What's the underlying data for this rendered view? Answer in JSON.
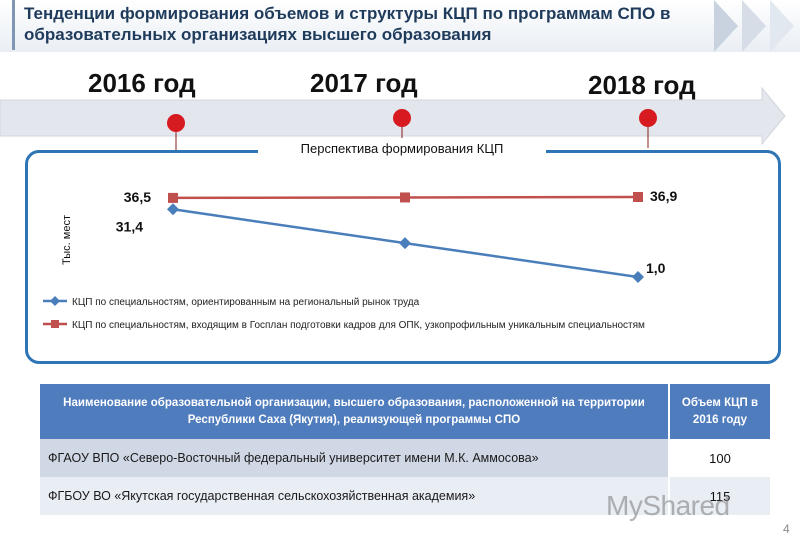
{
  "header": {
    "title": "Тенденции формирования объемов и структуры КЦП по программам СПО в образовательных организациях высшего образования"
  },
  "timeline": {
    "years": [
      "2016 год",
      "2017 год",
      "2018 год"
    ],
    "marker_color": "#d71a20",
    "arrow_color": "#e3e7ed"
  },
  "chart_data": {
    "type": "line",
    "title": "Перспектива формирования КЦП",
    "ylabel": "Тыс. мест",
    "x": [
      "2016",
      "2017",
      "2018"
    ],
    "ylim": [
      0,
      40
    ],
    "legend_position": "bottom",
    "series": [
      {
        "name": "КЦП по специальностям, ориентированным на региональный рынок труда",
        "values": [
          31.4,
          16.2,
          1.0
        ],
        "labels": [
          "31,4",
          "",
          "1,0"
        ],
        "color": "#4a7ebb",
        "marker": "diamond"
      },
      {
        "name": "КЦП по специальностям, входящим в Госплан подготовки кадров для ОПК, узкопрофильным уникальным специальностям",
        "values": [
          36.5,
          36.7,
          36.9
        ],
        "labels": [
          "36,5",
          "",
          "36,9"
        ],
        "color": "#c0504d",
        "marker": "square"
      }
    ]
  },
  "table": {
    "headers": [
      "Наименование образовательной организации, высшего образования, расположенной на территории Республики Саха (Якутия), реализующей программы СПО",
      "Объем КЦП в 2016 году"
    ],
    "rows": [
      {
        "name": "ФГАОУ ВПО «Северо-Восточный федеральный университет имени М.К. Аммосова»",
        "value": "100"
      },
      {
        "name": "ФГБОУ ВО «Якутская государственная сельскохозяйственная академия»",
        "value": "115"
      }
    ]
  },
  "page_number": "4",
  "watermark": "MyShared"
}
